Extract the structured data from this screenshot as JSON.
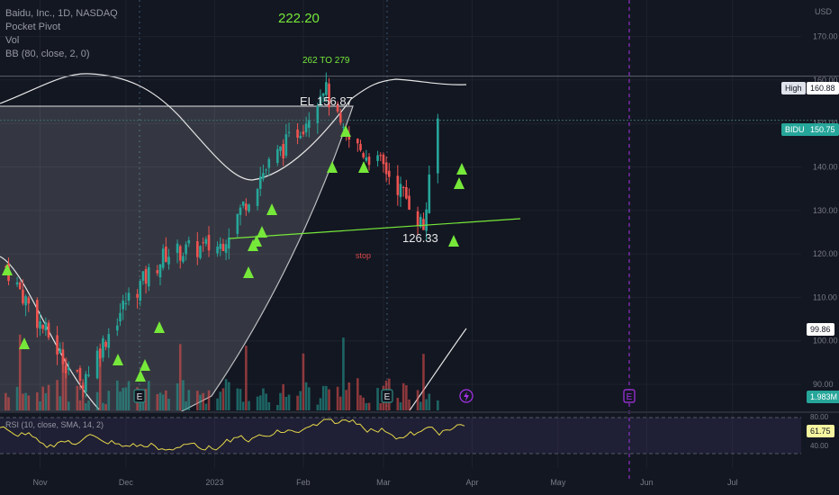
{
  "header": {
    "symbol_line": "Baidu, Inc., 1D, NASDAQ",
    "indicators": [
      "Pocket Pivot",
      "Vol",
      "BB (80, close, 2, 0)"
    ],
    "currency": "USD"
  },
  "annotations": {
    "target_price": "222.20",
    "target_range": "262 TO 279",
    "entry_level": "EL 156.87",
    "support_level": "126.33",
    "stop_label": "stop"
  },
  "price_tags": {
    "high_label": "High",
    "high_value": "160.88",
    "ticker_label": "BIDU",
    "last_value": "150.75",
    "bb_value": "99.86",
    "volume_value": "1.983M",
    "rsi_value": "61.75"
  },
  "earnings_marker": "E",
  "rsi_pane": {
    "label": "RSI (10, close, SMA, 14, 2)",
    "ticks": [
      "80.00",
      "40.00"
    ]
  },
  "chart_data": {
    "type": "line",
    "title": "Baidu, Inc., 1D, NASDAQ",
    "x": [
      "2022-10-20",
      "2022-11-01",
      "2022-11-15",
      "2022-12-01",
      "2022-12-15",
      "2023-01-03",
      "2023-01-17",
      "2023-02-01",
      "2023-02-08",
      "2023-02-15",
      "2023-03-01",
      "2023-03-10",
      "2023-03-15",
      "2023-03-20"
    ],
    "series": [
      {
        "name": "BIDU",
        "values": [
          117,
          104,
          90,
          109,
          120,
          122,
          138,
          150,
          159,
          147,
          140,
          132,
          126,
          150.75
        ]
      }
    ],
    "y_ticks": [
      170,
      160,
      150,
      140,
      130,
      120,
      110,
      100,
      90
    ],
    "ylim": [
      84,
      178
    ],
    "x_tick_labels": [
      "Nov",
      "Dec",
      "2023",
      "Feb",
      "Mar",
      "Apr",
      "May",
      "Jun",
      "Jul"
    ],
    "x_tick_dates": [
      "2022-11-01",
      "2022-12-01",
      "2023-01-01",
      "2023-02-01",
      "2023-03-01",
      "2023-04-01",
      "2023-05-01",
      "2023-06-01",
      "2023-07-01"
    ],
    "grid": true,
    "colors": {
      "up": "#26a69a",
      "down": "#ef5350",
      "signal": "#76e83a",
      "rsi": "#e8d94a",
      "earnings": "#a832e8"
    }
  }
}
